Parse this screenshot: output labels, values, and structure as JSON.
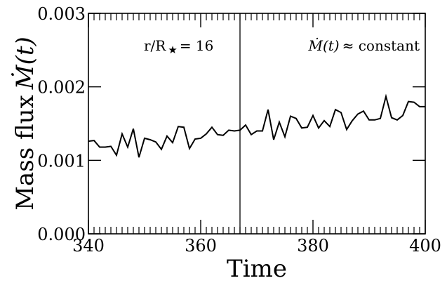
{
  "chart_data": {
    "type": "line",
    "xlabel": "Time",
    "ylabel": "Mass flux",
    "ylabel_symbol": "Ṁ(t)",
    "xlim": [
      340,
      400
    ],
    "ylim": [
      0.0,
      0.003
    ],
    "x_ticks": [
      "340",
      "360",
      "380",
      "400"
    ],
    "y_ticks": [
      "0.000",
      "0.001",
      "0.002",
      "0.003"
    ],
    "grid": false,
    "vertical_line_x": 367,
    "annotations": {
      "radius": "r/R",
      "radius_value": "= 16",
      "constant_symbol": "Ṁ(t)",
      "constant_text": "≈ constant"
    },
    "series": [
      {
        "x": [
          340,
          341,
          342,
          343,
          344,
          345,
          346,
          347,
          348,
          349,
          350,
          351,
          352,
          353,
          354,
          355,
          356,
          357,
          358,
          359,
          360,
          361,
          362,
          363,
          364,
          365,
          366,
          367,
          368,
          369,
          370,
          371,
          372,
          373,
          374,
          375,
          376,
          377,
          378,
          379,
          380,
          381,
          382,
          383,
          384,
          385,
          386,
          387,
          388,
          389,
          390,
          391,
          392,
          393,
          394,
          395,
          396,
          397,
          398,
          399,
          400
        ],
        "values": [
          0.00126,
          0.00127,
          0.00118,
          0.00118,
          0.00119,
          0.00107,
          0.00136,
          0.00118,
          0.00143,
          0.00104,
          0.0013,
          0.00128,
          0.00125,
          0.00115,
          0.00133,
          0.00124,
          0.00146,
          0.00145,
          0.00116,
          0.00129,
          0.0013,
          0.00136,
          0.00145,
          0.00135,
          0.00134,
          0.00141,
          0.0014,
          0.00141,
          0.00148,
          0.00135,
          0.0014,
          0.0014,
          0.00169,
          0.00128,
          0.00152,
          0.00132,
          0.0016,
          0.00157,
          0.00144,
          0.00145,
          0.00161,
          0.00144,
          0.00154,
          0.00146,
          0.00169,
          0.00165,
          0.00142,
          0.00154,
          0.00163,
          0.00167,
          0.00155,
          0.00155,
          0.00157,
          0.00187,
          0.00158,
          0.00155,
          0.00161,
          0.0018,
          0.00179,
          0.00173,
          0.00173
        ]
      }
    ]
  }
}
